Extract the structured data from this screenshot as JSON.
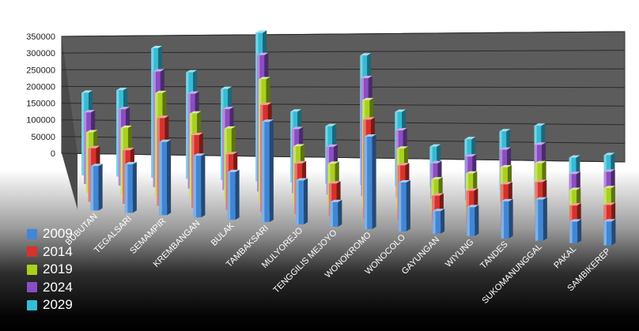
{
  "chart_data": {
    "type": "bar",
    "title": "",
    "xlabel": "",
    "ylabel": "",
    "ylim": [
      0,
      350000
    ],
    "yticks": [
      "0",
      "50000",
      "100000",
      "150000",
      "200000",
      "250000",
      "300000",
      "350000"
    ],
    "grid": true,
    "legend_position": "bottom-left",
    "categories": [
      "BUBUTAN",
      "TEGALSARI",
      "SEMAMPIR",
      "KREMBANGAN",
      "BULAK",
      "TAMBAKSARI",
      "MULYOREJO",
      "TENGGILIS MEJOYO",
      "WONOKROMO",
      "WONOCOLO",
      "GAYUNGAN",
      "WIYUNG",
      "TANDES",
      "SUKOMANUNGGAL",
      "PAKAL",
      "SAMBIKEREP"
    ],
    "series": [
      {
        "name": "2009",
        "color": "#3f87d6",
        "values": [
          108000,
          118000,
          178000,
          150000,
          116000,
          244000,
          107000,
          60000,
          225000,
          119000,
          55000,
          70000,
          90000,
          100000,
          52000,
          58000
        ]
      },
      {
        "name": "2014",
        "color": "#d9312b",
        "values": [
          125000,
          125000,
          205000,
          170000,
          130000,
          250000,
          118000,
          76000,
          230000,
          128000,
          62000,
          78000,
          98000,
          108000,
          58000,
          64000
        ]
      },
      {
        "name": "2019",
        "color": "#a8d11c",
        "values": [
          136000,
          150000,
          232000,
          190000,
          160000,
          275000,
          128000,
          93000,
          240000,
          135000,
          70000,
          87000,
          105000,
          118000,
          62000,
          70000
        ]
      },
      {
        "name": "2024",
        "color": "#8b4dc4",
        "values": [
          155000,
          165000,
          250000,
          205000,
          175000,
          295000,
          138000,
          103000,
          255000,
          145000,
          77000,
          95000,
          113000,
          127000,
          67000,
          75000
        ]
      },
      {
        "name": "2029",
        "color": "#34bcd8",
        "values": [
          172000,
          180000,
          270000,
          222000,
          190000,
          310000,
          148000,
          120000,
          270000,
          155000,
          85000,
          103000,
          122000,
          136000,
          72000,
          80000
        ]
      }
    ]
  }
}
